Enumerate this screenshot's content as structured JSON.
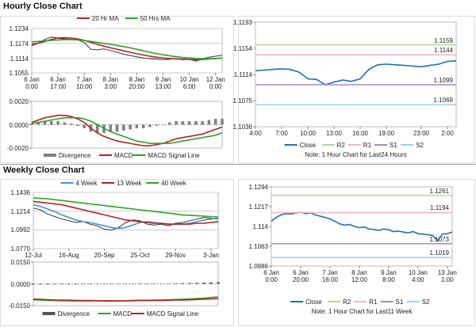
{
  "headings": [
    "Hourly Close Chart",
    "Weekly Close Chart"
  ],
  "chart_data": [
    {
      "type": "line",
      "grid": true,
      "xlim": [
        0,
        29
      ],
      "ylim": [
        1.1055,
        1.1234
      ],
      "yticks": [
        1.1234,
        1.1174,
        1.1114,
        1.1055
      ],
      "xticks": [
        {
          "value": 0,
          "label": "6 Jan\n0:00"
        },
        {
          "value": 4,
          "label": "6 Jan\n17:00"
        },
        {
          "value": 8,
          "label": "7 Jan\n10:00"
        },
        {
          "value": 12,
          "label": "8 Jan\n3:00"
        },
        {
          "value": 16,
          "label": "8 Jan\n20:00"
        },
        {
          "value": 20,
          "label": "9 Jan\n13:00"
        },
        {
          "value": 24,
          "label": "10 Jan\n6:00"
        },
        {
          "value": 28,
          "label": "12 Jan\n0:00"
        }
      ],
      "series": [
        {
          "color": "#333333",
          "values": [
            1.1165,
            1.1175,
            1.119,
            1.12,
            1.1195,
            1.1192,
            1.119,
            1.1188,
            1.1178,
            1.115,
            1.1148,
            1.1152,
            1.1145,
            1.1138,
            1.113,
            1.1125,
            1.112,
            1.1115,
            1.1112,
            1.111,
            1.1108,
            1.111,
            1.1112,
            1.1108,
            1.111,
            1.1102,
            1.1112,
            1.1118,
            1.1122,
            1.1126
          ]
        },
        {
          "name": "20 Hr MA",
          "color": "#a52a2a",
          "values": [
            1.117,
            1.1175,
            1.1182,
            1.119,
            1.1196,
            1.1197,
            1.1195,
            1.1192,
            1.1186,
            1.1178,
            1.117,
            1.1163,
            1.1156,
            1.115,
            1.1144,
            1.1138,
            1.1132,
            1.1127,
            1.1122,
            1.1118,
            1.1115,
            1.1113,
            1.1111,
            1.111,
            1.1109,
            1.1108,
            1.1109,
            1.1111,
            1.1113,
            1.1115
          ]
        },
        {
          "name": "50 Hrs MA",
          "color": "#2ca02c",
          "values": [
            1.118,
            1.1182,
            1.1184,
            1.1186,
            1.1188,
            1.1189,
            1.1189,
            1.1188,
            1.1186,
            1.1182,
            1.1178,
            1.1174,
            1.117,
            1.1166,
            1.1161,
            1.1156,
            1.115,
            1.1144,
            1.1138,
            1.1133,
            1.1128,
            1.1124,
            1.112,
            1.1117,
            1.1115,
            1.1113,
            1.1112,
            1.1112,
            1.1113,
            1.1114
          ]
        }
      ]
    },
    {
      "type": "line",
      "grid": false,
      "xlim": [
        0,
        29
      ],
      "ylim": [
        -0.002,
        0.002
      ],
      "yticks": [
        {
          "value": 0.002,
          "label": "0.0020"
        },
        {
          "value": 0,
          "label": "0.0000"
        },
        {
          "value": -0.002,
          "label": "-0.0020"
        }
      ],
      "series": [
        {
          "name": "Divergence",
          "color": "#808080",
          "style": "bar",
          "values": [
            0.0001,
            0.0002,
            0.0003,
            0.0003,
            0.0003,
            0.0002,
            0.0001,
            -0.0001,
            -0.0003,
            -0.0006,
            -0.0007,
            -0.0007,
            -0.0006,
            -0.0006,
            -0.0005,
            -0.0004,
            -0.0003,
            -0.0003,
            -0.0002,
            -0.0001,
            0,
            0.0002,
            0.0003,
            0.0003,
            0.0003,
            0.0003,
            0.0003,
            0.0004,
            0.0005,
            0.0005
          ]
        },
        {
          "name": "MACD",
          "color": "#b22222",
          "values": [
            0.0002,
            0.0004,
            0.0006,
            0.0007,
            0.0008,
            0.0008,
            0.0007,
            0.0005,
            0.0002,
            -0.0003,
            -0.0007,
            -0.001,
            -0.0012,
            -0.0014,
            -0.0015,
            -0.0016,
            -0.0017,
            -0.0018,
            -0.0018,
            -0.0017,
            -0.0016,
            -0.0014,
            -0.0012,
            -0.0011,
            -0.001,
            -0.0009,
            -0.0008,
            -0.0006,
            -0.0004,
            -0.0002
          ]
        },
        {
          "name": "MACD Signal Line",
          "color": "#2ca02c",
          "values": [
            0.0001,
            0.0002,
            0.0003,
            0.0004,
            0.0005,
            0.0006,
            0.0006,
            0.0006,
            0.0005,
            0.0003,
            0,
            -0.0003,
            -0.0006,
            -0.0008,
            -0.001,
            -0.0012,
            -0.0014,
            -0.0015,
            -0.0016,
            -0.0016,
            -0.0016,
            -0.0016,
            -0.0015,
            -0.0014,
            -0.0013,
            -0.0012,
            -0.0011,
            -0.001,
            -0.0009,
            -0.0007
          ]
        }
      ]
    },
    {
      "type": "line",
      "grid": false,
      "xlim": [
        0,
        23
      ],
      "ylim": [
        1.1036,
        1.1193
      ],
      "yticks": [
        1.1193,
        1.1154,
        1.1114,
        1.1075,
        1.1036
      ],
      "xticks": [
        {
          "value": 0,
          "label": "4:00"
        },
        {
          "value": 3,
          "label": "7:00"
        },
        {
          "value": 6,
          "label": "10:00"
        },
        {
          "value": 9,
          "label": "13:00"
        },
        {
          "value": 12,
          "label": "16:00"
        },
        {
          "value": 15,
          "label": "19:00"
        },
        {
          "value": 19,
          "label": "23:00"
        },
        {
          "value": 22,
          "label": "2:00"
        }
      ],
      "series": [
        {
          "name": "Close",
          "color": "#1f6fb4",
          "values": [
            1.112,
            1.1121,
            1.1122,
            1.1123,
            1.1122,
            1.1118,
            1.1108,
            1.1107,
            1.1099,
            1.1103,
            1.1106,
            1.1104,
            1.1108,
            1.1122,
            1.1129,
            1.113,
            1.1129,
            1.1128,
            1.1127,
            1.1126,
            1.1128,
            1.113,
            1.1134,
            1.1135
          ]
        },
        {
          "name": "R2",
          "color": "#b5d69b",
          "level": 1.1159
        },
        {
          "name": "R1",
          "color": "#f4b6c2",
          "level": 1.1144
        },
        {
          "name": "S1",
          "color": "#a58bc2",
          "level": 1.1099
        },
        {
          "name": "S2",
          "color": "#9dd3e8",
          "level": 1.1069
        }
      ],
      "note": "Note: 1 Hour Chart for Last24 Hours"
    },
    {
      "type": "line",
      "grid": true,
      "xlim": [
        0,
        26
      ],
      "ylim": [
        1.077,
        1.1436
      ],
      "yticks": [
        1.1436,
        1.1214,
        1.0992,
        {
          "value": 1.077,
          "label": "1.0770"
        }
      ],
      "xticks": [
        {
          "value": 0,
          "label": "12-Jul"
        },
        {
          "value": 5,
          "label": "16-Aug"
        },
        {
          "value": 10,
          "label": "20-Sep"
        },
        {
          "value": 15,
          "label": "25-Oct"
        },
        {
          "value": 20,
          "label": "29-Nov"
        },
        {
          "value": 25,
          "label": "3-Jan"
        }
      ],
      "series": [
        {
          "color": "#333333",
          "values": [
            1.125,
            1.123,
            1.118,
            1.115,
            1.112,
            1.11,
            1.108,
            1.109,
            1.106,
            1.104,
            1.1,
            1.099,
            1.102,
            1.108,
            1.111,
            1.11,
            1.106,
            1.105,
            1.106,
            1.104,
            1.107,
            1.108,
            1.11,
            1.112,
            1.114,
            1.113,
            1.112
          ]
        },
        {
          "name": "4 Week",
          "color": "#4a90d9",
          "values": [
            1.129,
            1.127,
            1.124,
            1.121,
            1.117,
            1.114,
            1.111,
            1.109,
            1.108,
            1.106,
            1.104,
            1.102,
            1.101,
            1.102,
            1.105,
            1.108,
            1.109,
            1.108,
            1.107,
            1.106,
            1.106,
            1.106,
            1.107,
            1.109,
            1.111,
            1.112,
            1.113
          ]
        },
        {
          "name": "13 Week",
          "color": "#b22222",
          "values": [
            1.133,
            1.132,
            1.131,
            1.13,
            1.129,
            1.127,
            1.125,
            1.123,
            1.121,
            1.119,
            1.117,
            1.115,
            1.113,
            1.111,
            1.11,
            1.109,
            1.108,
            1.107,
            1.107,
            1.106,
            1.106,
            1.106,
            1.106,
            1.107,
            1.107,
            1.108,
            1.109
          ]
        },
        {
          "name": "40 Week",
          "color": "#33a02c",
          "values": [
            1.137,
            1.1365,
            1.136,
            1.135,
            1.134,
            1.133,
            1.132,
            1.131,
            1.13,
            1.129,
            1.128,
            1.127,
            1.126,
            1.125,
            1.124,
            1.123,
            1.122,
            1.121,
            1.12,
            1.119,
            1.118,
            1.117,
            1.1165,
            1.116,
            1.1155,
            1.115,
            1.1145
          ]
        }
      ]
    },
    {
      "type": "line",
      "grid": false,
      "xlim": [
        0,
        26
      ],
      "ylim": [
        -0.015,
        0.015
      ],
      "yticks": [
        {
          "value": 0.015,
          "label": "0.0150"
        },
        {
          "value": 0,
          "label": "0.0000"
        },
        {
          "value": -0.015,
          "label": "-0.0150"
        }
      ],
      "series": [
        {
          "name": "Divergence",
          "color": "#555555",
          "style": "bar",
          "values": [
            -0.0005,
            -0.0005,
            -0.0005,
            -0.0004,
            -0.0004,
            -0.0004,
            -0.0004,
            -0.0003,
            -0.0002,
            -0.0001,
            -0.0002,
            -0.0002,
            -0.0001,
            0.0001,
            0.0002,
            0.0002,
            0.0002,
            0.0002,
            0.0003,
            0.0003,
            0.0004,
            0.0005,
            0.0006,
            0.0007,
            0.0008,
            0.001,
            0.0011
          ]
        },
        {
          "name": "MACD",
          "color": "#2ca02c",
          "values": [
            -0.011,
            -0.0112,
            -0.0114,
            -0.0115,
            -0.0116,
            -0.0117,
            -0.0118,
            -0.0118,
            -0.0117,
            -0.0117,
            -0.0118,
            -0.0119,
            -0.0118,
            -0.0116,
            -0.0114,
            -0.0113,
            -0.0113,
            -0.0112,
            -0.0111,
            -0.011,
            -0.0108,
            -0.0106,
            -0.0104,
            -0.0101,
            -0.0098,
            -0.0094,
            -0.009
          ]
        },
        {
          "name": "MACD Signal Line",
          "color": "#b22222",
          "values": [
            -0.0105,
            -0.0107,
            -0.0109,
            -0.0111,
            -0.0112,
            -0.0113,
            -0.0114,
            -0.0115,
            -0.0115,
            -0.0116,
            -0.0116,
            -0.0117,
            -0.0117,
            -0.0117,
            -0.0116,
            -0.0115,
            -0.0115,
            -0.0114,
            -0.0114,
            -0.0113,
            -0.0112,
            -0.0111,
            -0.011,
            -0.0108,
            -0.0106,
            -0.0104,
            -0.0101
          ]
        }
      ]
    },
    {
      "type": "line",
      "grid": false,
      "xlim": [
        0,
        37
      ],
      "ylim": [
        1.0986,
        1.1294
      ],
      "yticks": [
        1.1294,
        1.1217,
        1.114,
        1.1063,
        1.0986
      ],
      "xticks": [
        {
          "value": 0,
          "label": "6 Jan\n0:00"
        },
        {
          "value": 6,
          "label": "6 Jan\n20:00"
        },
        {
          "value": 12,
          "label": "7 Jan\n16:00"
        },
        {
          "value": 18,
          "label": "8 Jan\n12:00"
        },
        {
          "value": 24,
          "label": "9 Jan\n8:00"
        },
        {
          "value": 30,
          "label": "10 Jan\n4:00"
        },
        {
          "value": 36,
          "label": "13 Jan\n1:00"
        }
      ],
      "series": [
        {
          "name": "Close",
          "color": "#1f6fb4",
          "values": [
            1.116,
            1.1175,
            1.1185,
            1.119,
            1.1188,
            1.1192,
            1.1195,
            1.119,
            1.1193,
            1.1185,
            1.118,
            1.1175,
            1.117,
            1.116,
            1.115,
            1.1145,
            1.1148,
            1.114,
            1.1135,
            1.1138,
            1.113,
            1.1128,
            1.1125,
            1.113,
            1.1127,
            1.112,
            1.1122,
            1.1118,
            1.1115,
            1.112,
            1.1112,
            1.111,
            1.1108,
            1.1105,
            1.1085,
            1.111,
            1.1112,
            1.1118
          ]
        },
        {
          "name": "R2",
          "color": "#b5d69b",
          "level": 1.1261
        },
        {
          "name": "R1",
          "color": "#f4b6c2",
          "level": 1.1194
        },
        {
          "name": "S1",
          "color": "#a58bc2",
          "level": 1.1073
        },
        {
          "name": "S2",
          "color": "#9dd3e8",
          "level": 1.1019
        }
      ],
      "note": "Note: 1 Hour Chart for Last11 Week"
    }
  ]
}
